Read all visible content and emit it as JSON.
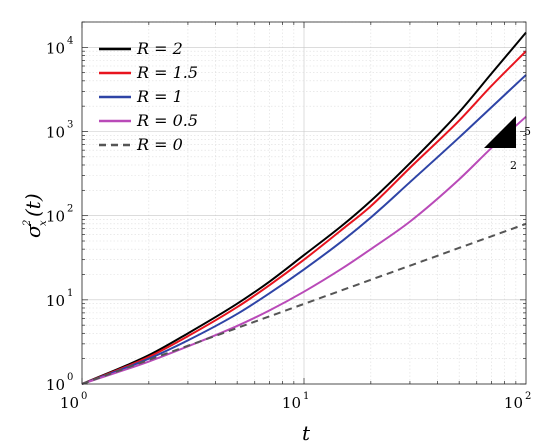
{
  "chart_data": {
    "type": "line",
    "x_scale": "log",
    "y_scale": "log",
    "xlim": [
      1,
      100
    ],
    "ylim": [
      1,
      20000
    ],
    "xlabel": "t",
    "ylabel": "σ_x^2(t)",
    "grid": true,
    "legend_position": "top-left",
    "x_ticks": [
      {
        "base": "10",
        "exp": "0",
        "value": 1
      },
      {
        "base": "10",
        "exp": "1",
        "value": 10
      },
      {
        "base": "10",
        "exp": "2",
        "value": 100
      }
    ],
    "y_ticks": [
      {
        "base": "10",
        "exp": "0",
        "value": 1
      },
      {
        "base": "10",
        "exp": "1",
        "value": 10
      },
      {
        "base": "10",
        "exp": "2",
        "value": 100
      },
      {
        "base": "10",
        "exp": "3",
        "value": 1000
      },
      {
        "base": "10",
        "exp": "4",
        "value": 10000
      }
    ],
    "series": [
      {
        "name": "R = 2",
        "color": "#000000",
        "dash": "",
        "x": [
          1,
          2,
          3,
          5,
          7,
          10,
          15,
          20,
          30,
          50,
          70,
          100
        ],
        "y": [
          1,
          2.2,
          4.0,
          9.0,
          16.5,
          34,
          78,
          150,
          420,
          1700,
          4900,
          15000
        ]
      },
      {
        "name": "R = 1.5",
        "color": "#e8141e",
        "dash": "",
        "x": [
          1,
          2,
          3,
          5,
          7,
          10,
          15,
          20,
          30,
          50,
          70,
          100
        ],
        "y": [
          1,
          2.1,
          3.7,
          8.2,
          15,
          30,
          70,
          130,
          370,
          1350,
          3500,
          9000
        ]
      },
      {
        "name": "R = 1",
        "color": "#2e44a6",
        "dash": "",
        "x": [
          1,
          2,
          3,
          5,
          7,
          10,
          15,
          20,
          30,
          50,
          70,
          100
        ],
        "y": [
          1,
          2.0,
          3.3,
          6.8,
          12,
          23,
          51,
          95,
          250,
          850,
          1950,
          4700
        ]
      },
      {
        "name": "R = 0.5",
        "color": "#b94ab8",
        "dash": "",
        "x": [
          1,
          2,
          3,
          5,
          7,
          10,
          15,
          20,
          30,
          50,
          70,
          100
        ],
        "y": [
          1,
          1.85,
          2.8,
          4.9,
          7.5,
          12.5,
          24,
          40,
          85,
          270,
          640,
          1500
        ]
      },
      {
        "name": "R = 0",
        "color": "#555555",
        "dash": "7,5",
        "x": [
          1,
          100
        ],
        "y": [
          1,
          80
        ]
      }
    ],
    "slope_triangle": {
      "rise_label": "5",
      "run_label": "2",
      "color": "#000000"
    }
  }
}
